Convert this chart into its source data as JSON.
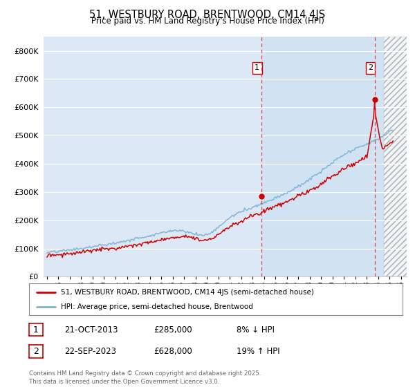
{
  "title": "51, WESTBURY ROAD, BRENTWOOD, CM14 4JS",
  "subtitle": "Price paid vs. HM Land Registry's House Price Index (HPI)",
  "ylim": [
    0,
    850000
  ],
  "yticks": [
    0,
    100000,
    200000,
    300000,
    400000,
    500000,
    600000,
    700000,
    800000
  ],
  "ytick_labels": [
    "£0",
    "£100K",
    "£200K",
    "£300K",
    "£400K",
    "£500K",
    "£600K",
    "£700K",
    "£800K"
  ],
  "xlim_start": 1994.7,
  "xlim_end": 2026.5,
  "property_color": "#cc0000",
  "hpi_color": "#7ab0d4",
  "sale1_year": 2013.8,
  "sale1_price": 285000,
  "sale1_label": "1",
  "sale2_year": 2023.72,
  "sale2_price": 628000,
  "sale2_label": "2",
  "legend_line1": "51, WESTBURY ROAD, BRENTWOOD, CM14 4JS (semi-detached house)",
  "legend_line2": "HPI: Average price, semi-detached house, Brentwood",
  "annotation1_num": "1",
  "annotation1_date": "21-OCT-2013",
  "annotation1_price": "£285,000",
  "annotation1_hpi": "8% ↓ HPI",
  "annotation2_num": "2",
  "annotation2_date": "22-SEP-2023",
  "annotation2_price": "£628,000",
  "annotation2_hpi": "19% ↑ HPI",
  "footer": "Contains HM Land Registry data © Crown copyright and database right 2025.\nThis data is licensed under the Open Government Licence v3.0.",
  "background_color": "#ffffff",
  "plot_bg_color": "#dce8f5",
  "hatch_start": 2024.5,
  "shade_start": 2013.8
}
